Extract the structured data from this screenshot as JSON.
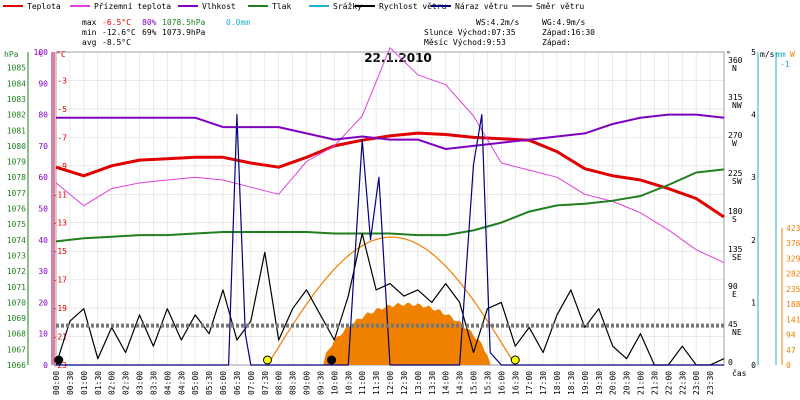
{
  "colors": {
    "teplota": "#e00000",
    "pocitova": "#e040e0",
    "vlhkost": "#8000c0",
    "tlak": "#208020",
    "srazky": "#20b0d0",
    "vitr": "#000000",
    "naraz": "#000080",
    "smer": "#808080",
    "sun": "#f08000",
    "yellow": "#ffff00"
  },
  "legend": [
    {
      "label": "Teplota",
      "color": "#e00000"
    },
    {
      "label": "Přízemní teplota",
      "color": "#e040e0"
    },
    {
      "label": "Vlhkost",
      "color": "#8000c0"
    },
    {
      "label": "Tlak",
      "color": "#208020"
    },
    {
      "label": "Srážky",
      "color": "#20b0d0"
    },
    {
      "label": "Rychlost větru",
      "color": "#000000"
    },
    {
      "label": "Náraz větru",
      "color": "#000080"
    },
    {
      "label": "Směr větru",
      "color": "#808080"
    }
  ],
  "stats": {
    "max_label": "max",
    "max_temp": "-6.5°C",
    "max_hum": "80%",
    "max_press": "1078.5hPa",
    "max_rain": "0.0mm",
    "min_label": "min",
    "min_temp": "-12.6°C",
    "min_hum": "69%",
    "min_press": "1073.9hPa",
    "avg_label": "avg",
    "avg_temp": "-8.5°C",
    "ws": "WS:4.2m/s",
    "wg": "WG:4.9m/s",
    "slunce_vychod": "Slunce Východ:07:35",
    "slunce_zapad": "Západ:16:30",
    "mesic_vychod": "Měsíc  Východ:9:53",
    "mesic_zapad": "Západ:"
  },
  "chart_data": {
    "type": "line",
    "title": "22.1.2010",
    "x_ticks": [
      "00:00",
      "00:30",
      "01:00",
      "01:30",
      "02:00",
      "02:30",
      "03:00",
      "03:30",
      "04:00",
      "04:30",
      "05:00",
      "05:30",
      "06:00",
      "06:30",
      "07:00",
      "07:30",
      "08:00",
      "08:30",
      "09:00",
      "09:30",
      "10:00",
      "10:30",
      "11:00",
      "11:30",
      "12:00",
      "12:30",
      "13:00",
      "13:30",
      "14:00",
      "14:30",
      "15:00",
      "15:30",
      "16:00",
      "16:30",
      "17:00",
      "17:30",
      "18:00",
      "18:30",
      "19:00",
      "19:30",
      "20:00",
      "20:30",
      "21:00",
      "21:30",
      "22:00",
      "22:30",
      "23:00",
      "23:30"
    ],
    "xlabel": "čas",
    "axes": {
      "hpa": {
        "title": "hPa",
        "min": 1066,
        "max": 1086,
        "ticks": [
          1066,
          1067,
          1068,
          1069,
          1070,
          1071,
          1072,
          1073,
          1074,
          1075,
          1076,
          1077,
          1078,
          1079,
          1080,
          1081,
          1082,
          1083,
          1084,
          1085
        ]
      },
      "pct": {
        "title": "%",
        "min": 0,
        "max": 100,
        "ticks": [
          0,
          10,
          20,
          30,
          40,
          50,
          60,
          70,
          80,
          90,
          100
        ]
      },
      "temp": {
        "title": "°C",
        "min": -23,
        "max": -1,
        "ticks": [
          -23,
          -21,
          -19,
          -17,
          -15,
          -13,
          -11,
          -9,
          -7,
          -5,
          -3
        ]
      },
      "dir": {
        "title": "°",
        "ticks": [
          "0",
          "45 NE",
          "90 E",
          "135 SE",
          "180 S",
          "225 SW",
          "270 W",
          "315 NW",
          "360 N"
        ]
      },
      "ms": {
        "title": "m/s",
        "min": 0,
        "max": 5,
        "ticks": [
          0,
          1,
          2,
          3,
          4,
          5
        ]
      },
      "mm": {
        "title": "mm",
        "min": -1,
        "max": 1,
        "ticks": [
          "-1"
        ]
      },
      "w": {
        "title": "W",
        "min": 0,
        "max": 423,
        "ticks": [
          0,
          47,
          94,
          141,
          188,
          235,
          282,
          329,
          376,
          423
        ]
      }
    },
    "series": [
      {
        "name": "Teplota",
        "axis": "temp",
        "x": [
          0,
          1,
          2,
          3,
          4,
          5,
          6,
          7,
          8,
          9,
          10,
          11,
          12,
          13,
          14,
          15,
          16,
          17,
          18,
          19,
          20,
          21,
          22,
          23,
          24
        ],
        "values": [
          -9.1,
          -9.7,
          -9.0,
          -8.6,
          -8.5,
          -8.4,
          -8.4,
          -8.8,
          -9.1,
          -8.4,
          -7.6,
          -7.2,
          -6.9,
          -6.7,
          -6.8,
          -7.0,
          -7.1,
          -7.2,
          -8.0,
          -9.2,
          -9.7,
          -10.0,
          -10.6,
          -11.3,
          -12.6
        ]
      },
      {
        "name": "Přízemní teplota",
        "axis": "temp",
        "x": [
          0,
          1,
          2,
          3,
          4,
          5,
          6,
          7,
          8,
          9,
          10,
          11,
          12,
          13,
          14,
          15,
          16,
          17,
          18,
          19,
          20,
          21,
          22,
          23,
          24
        ],
        "values": [
          -10.2,
          -11.8,
          -10.6,
          -10.2,
          -10.0,
          -9.8,
          -10.0,
          -10.5,
          -11.0,
          -8.7,
          -7.6,
          -5.5,
          -0.7,
          -2.6,
          -3.3,
          -5.5,
          -8.8,
          -9.3,
          -9.8,
          -11.0,
          -11.5,
          -12.3,
          -13.5,
          -14.9,
          -15.8
        ]
      },
      {
        "name": "Vlhkost",
        "axis": "pct",
        "x": [
          0,
          1,
          2,
          3,
          4,
          5,
          6,
          7,
          8,
          9,
          10,
          11,
          12,
          13,
          14,
          15,
          16,
          17,
          18,
          19,
          20,
          21,
          22,
          23,
          24
        ],
        "values": [
          79,
          79,
          79,
          79,
          79,
          79,
          76,
          76,
          76,
          74,
          72,
          73,
          72,
          72,
          69,
          70,
          71,
          72,
          73,
          74,
          77,
          79,
          80,
          80,
          79
        ]
      },
      {
        "name": "Tlak",
        "axis": "hpa",
        "x": [
          0,
          1,
          2,
          3,
          4,
          5,
          6,
          7,
          8,
          9,
          10,
          11,
          12,
          13,
          14,
          15,
          16,
          17,
          18,
          19,
          20,
          21,
          22,
          23,
          24
        ],
        "values": [
          1073.9,
          1074.1,
          1074.2,
          1074.3,
          1074.3,
          1074.4,
          1074.5,
          1074.5,
          1074.5,
          1074.5,
          1074.4,
          1074.4,
          1074.4,
          1074.3,
          1074.3,
          1074.6,
          1075.1,
          1075.8,
          1076.2,
          1076.3,
          1076.5,
          1076.8,
          1077.5,
          1078.3,
          1078.5
        ]
      },
      {
        "name": "Rychlost větru",
        "axis": "ms",
        "x": [
          0,
          0.5,
          1,
          1.5,
          2,
          2.5,
          3,
          3.5,
          4,
          4.5,
          5,
          5.5,
          6,
          6.5,
          7,
          7.5,
          8,
          8.5,
          9,
          9.5,
          10,
          10.5,
          11,
          11.5,
          12,
          12.5,
          13,
          13.5,
          14,
          14.5,
          15,
          15.5,
          16,
          16.5,
          17,
          17.5,
          18,
          18.5,
          19,
          19.5,
          20,
          20.5,
          21,
          21.5,
          22,
          22.5,
          23,
          23.5,
          24
        ],
        "values": [
          0.0,
          0.7,
          0.9,
          0.1,
          0.6,
          0.2,
          0.8,
          0.3,
          0.9,
          0.4,
          0.8,
          0.5,
          1.2,
          0.4,
          0.7,
          1.8,
          0.4,
          0.9,
          1.2,
          0.8,
          0.4,
          1.1,
          2.1,
          1.2,
          1.3,
          1.1,
          1.2,
          1.0,
          1.3,
          1.0,
          0.2,
          0.9,
          1.0,
          0.3,
          0.6,
          0.2,
          0.8,
          1.2,
          0.6,
          0.9,
          0.3,
          0.1,
          0.5,
          0.0,
          0.0,
          0.3,
          0.0,
          0.0,
          0.1
        ]
      },
      {
        "name": "Náraz větru",
        "axis": "ms",
        "x": [
          0,
          6.2,
          6.5,
          6.8,
          7,
          10.5,
          11,
          11.3,
          11.6,
          12,
          14.5,
          15,
          15.3,
          15.6,
          16,
          24
        ],
        "values": [
          0,
          0,
          4.0,
          0.5,
          0,
          0,
          3.6,
          2.0,
          3.0,
          0,
          0,
          3.2,
          4.0,
          0.2,
          0,
          0
        ]
      },
      {
        "name": "Směr větru",
        "axis": "dir",
        "x": [
          0,
          24
        ],
        "values": [
          47,
          47
        ]
      }
    ],
    "solar": {
      "axis": "w",
      "peak_hour": 12.4,
      "max_w": 395,
      "start": 7.6,
      "end": 16.5,
      "measured_peak": 188,
      "measured_start": 9.6,
      "measured_end": 15.6
    },
    "markers": [
      {
        "x": 7.6,
        "type": "sunrise"
      },
      {
        "x": 16.5,
        "type": "sunset"
      },
      {
        "x": 0.1,
        "type": "moon"
      },
      {
        "x": 9.9,
        "type": "moonrise"
      }
    ]
  }
}
